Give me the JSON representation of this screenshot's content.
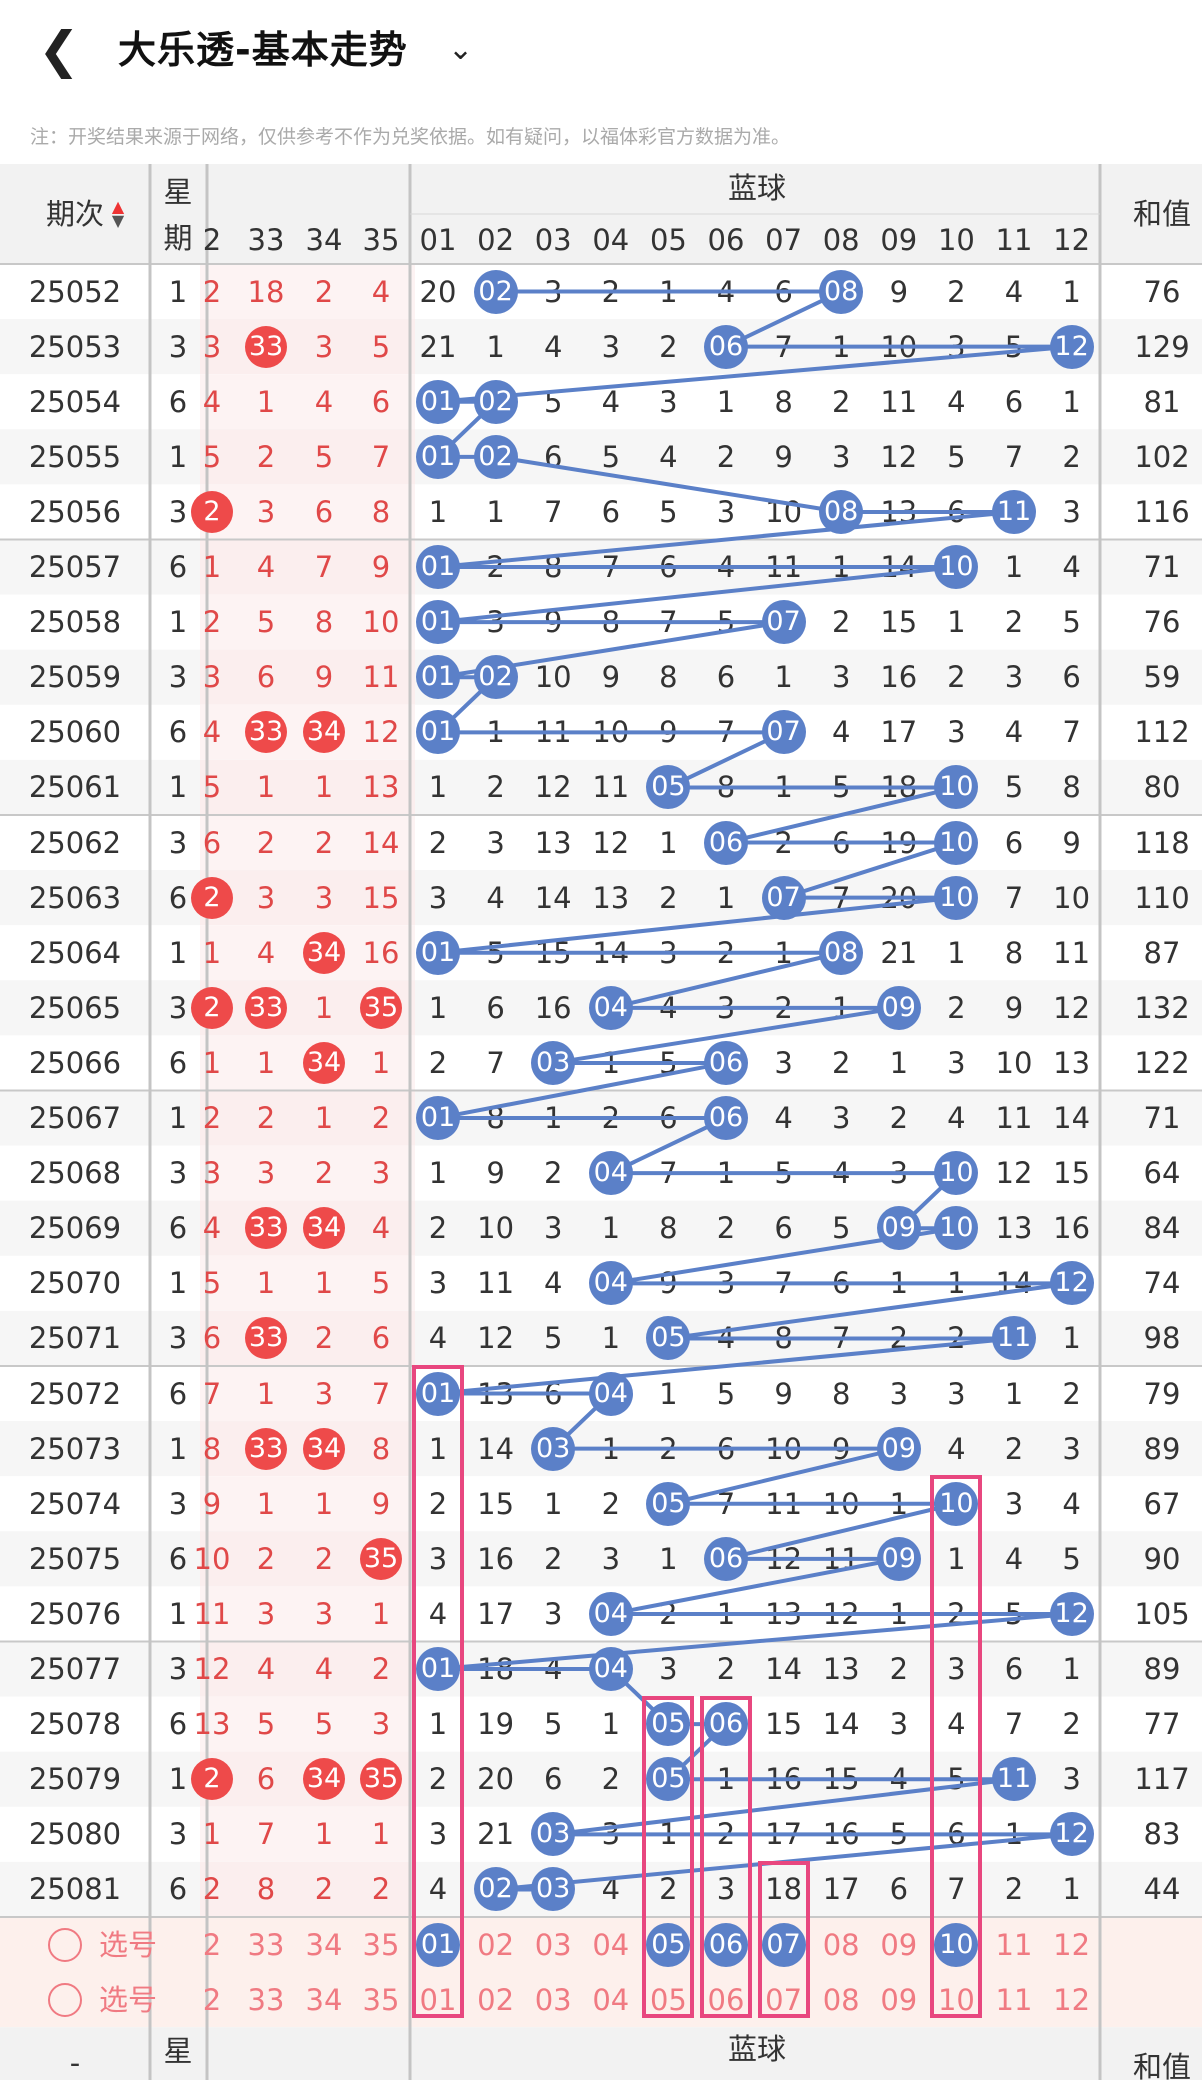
{
  "header": {
    "title": "大乐透-基本走势",
    "back_icon": "chevron-left-icon",
    "dropdown_icon": "chevron-down-icon"
  },
  "note": "注：开奖结果来源于网络，仅供参考不作为兑奖依据。如有疑问，以福体彩官方数据为准。",
  "table_header": {
    "period_label": "期次",
    "week_label": "星期",
    "blue_label": "蓝球",
    "sum_label": "和值",
    "red_cols": [
      "2",
      "33",
      "34",
      "35"
    ],
    "blue_cols": [
      "01",
      "02",
      "03",
      "04",
      "05",
      "06",
      "07",
      "08",
      "09",
      "10",
      "11",
      "12"
    ]
  },
  "colors": {
    "red_ball": "#ee4a4a",
    "blue_ball": "#5b80c8",
    "trend_line": "#5b80c8",
    "box": "#e8477f",
    "red_text": "#e04848",
    "pick_text": "#f07a82"
  },
  "rows": [
    {
      "period": "25052",
      "week": "1",
      "red": [
        "2",
        "18",
        "2",
        "4"
      ],
      "red_hit": [
        false,
        false,
        false,
        false
      ],
      "blue": [
        "20",
        "02",
        "3",
        "2",
        "1",
        "4",
        "6",
        "08",
        "9",
        "2",
        "4",
        "1"
      ],
      "blue_hit": [
        2,
        8
      ],
      "sum": "76"
    },
    {
      "period": "25053",
      "week": "3",
      "red": [
        "3",
        "33",
        "3",
        "5"
      ],
      "red_hit": [
        false,
        true,
        false,
        false
      ],
      "blue": [
        "21",
        "1",
        "4",
        "3",
        "2",
        "06",
        "7",
        "1",
        "10",
        "3",
        "5",
        "12"
      ],
      "blue_hit": [
        6,
        12
      ],
      "sum": "129"
    },
    {
      "period": "25054",
      "week": "6",
      "red": [
        "4",
        "1",
        "4",
        "6"
      ],
      "red_hit": [
        false,
        false,
        false,
        false
      ],
      "blue": [
        "01",
        "02",
        "5",
        "4",
        "3",
        "1",
        "8",
        "2",
        "11",
        "4",
        "6",
        "1"
      ],
      "blue_hit": [
        1,
        2
      ],
      "sum": "81"
    },
    {
      "period": "25055",
      "week": "1",
      "red": [
        "5",
        "2",
        "5",
        "7"
      ],
      "red_hit": [
        false,
        false,
        false,
        false
      ],
      "blue": [
        "01",
        "02",
        "6",
        "5",
        "4",
        "2",
        "9",
        "3",
        "12",
        "5",
        "7",
        "2"
      ],
      "blue_hit": [
        1,
        2
      ],
      "sum": "102"
    },
    {
      "period": "25056",
      "week": "3",
      "red": [
        "2",
        "3",
        "6",
        "8"
      ],
      "red_hit": [
        true,
        false,
        false,
        false
      ],
      "blue": [
        "1",
        "1",
        "7",
        "6",
        "5",
        "3",
        "10",
        "08",
        "13",
        "6",
        "11",
        "3"
      ],
      "blue_hit": [
        8,
        11
      ],
      "sum": "116"
    },
    {
      "period": "25057",
      "week": "6",
      "red": [
        "1",
        "4",
        "7",
        "9"
      ],
      "red_hit": [
        false,
        false,
        false,
        false
      ],
      "blue": [
        "01",
        "2",
        "8",
        "7",
        "6",
        "4",
        "11",
        "1",
        "14",
        "10",
        "1",
        "4"
      ],
      "blue_hit": [
        1,
        10
      ],
      "sum": "71"
    },
    {
      "period": "25058",
      "week": "1",
      "red": [
        "2",
        "5",
        "8",
        "10"
      ],
      "red_hit": [
        false,
        false,
        false,
        false
      ],
      "blue": [
        "01",
        "3",
        "9",
        "8",
        "7",
        "5",
        "07",
        "2",
        "15",
        "1",
        "2",
        "5"
      ],
      "blue_hit": [
        1,
        7
      ],
      "sum": "76"
    },
    {
      "period": "25059",
      "week": "3",
      "red": [
        "3",
        "6",
        "9",
        "11"
      ],
      "red_hit": [
        false,
        false,
        false,
        false
      ],
      "blue": [
        "01",
        "02",
        "10",
        "9",
        "8",
        "6",
        "1",
        "3",
        "16",
        "2",
        "3",
        "6"
      ],
      "blue_hit": [
        1,
        2
      ],
      "sum": "59"
    },
    {
      "period": "25060",
      "week": "6",
      "red": [
        "4",
        "33",
        "34",
        "12"
      ],
      "red_hit": [
        false,
        true,
        true,
        false
      ],
      "blue": [
        "01",
        "1",
        "11",
        "10",
        "9",
        "7",
        "07",
        "4",
        "17",
        "3",
        "4",
        "7"
      ],
      "blue_hit": [
        1,
        7
      ],
      "sum": "112"
    },
    {
      "period": "25061",
      "week": "1",
      "red": [
        "5",
        "1",
        "1",
        "13"
      ],
      "red_hit": [
        false,
        false,
        false,
        false
      ],
      "blue": [
        "1",
        "2",
        "12",
        "11",
        "05",
        "8",
        "1",
        "5",
        "18",
        "10",
        "5",
        "8"
      ],
      "blue_hit": [
        5,
        10
      ],
      "sum": "80"
    },
    {
      "period": "25062",
      "week": "3",
      "red": [
        "6",
        "2",
        "2",
        "14"
      ],
      "red_hit": [
        false,
        false,
        false,
        false
      ],
      "blue": [
        "2",
        "3",
        "13",
        "12",
        "1",
        "06",
        "2",
        "6",
        "19",
        "10",
        "6",
        "9"
      ],
      "blue_hit": [
        6,
        10
      ],
      "sum": "118"
    },
    {
      "period": "25063",
      "week": "6",
      "red": [
        "2",
        "3",
        "3",
        "15"
      ],
      "red_hit": [
        true,
        false,
        false,
        false
      ],
      "blue": [
        "3",
        "4",
        "14",
        "13",
        "2",
        "1",
        "07",
        "7",
        "20",
        "10",
        "7",
        "10"
      ],
      "blue_hit": [
        7,
        10
      ],
      "sum": "110"
    },
    {
      "period": "25064",
      "week": "1",
      "red": [
        "1",
        "4",
        "34",
        "16"
      ],
      "red_hit": [
        false,
        false,
        true,
        false
      ],
      "blue": [
        "01",
        "5",
        "15",
        "14",
        "3",
        "2",
        "1",
        "08",
        "21",
        "1",
        "8",
        "11"
      ],
      "blue_hit": [
        1,
        8
      ],
      "sum": "87"
    },
    {
      "period": "25065",
      "week": "3",
      "red": [
        "2",
        "33",
        "1",
        "35"
      ],
      "red_hit": [
        true,
        true,
        false,
        true
      ],
      "blue": [
        "1",
        "6",
        "16",
        "04",
        "4",
        "3",
        "2",
        "1",
        "09",
        "2",
        "9",
        "12"
      ],
      "blue_hit": [
        4,
        9
      ],
      "sum": "132"
    },
    {
      "period": "25066",
      "week": "6",
      "red": [
        "1",
        "1",
        "34",
        "1"
      ],
      "red_hit": [
        false,
        false,
        true,
        false
      ],
      "blue": [
        "2",
        "7",
        "03",
        "1",
        "5",
        "06",
        "3",
        "2",
        "1",
        "3",
        "10",
        "13"
      ],
      "blue_hit": [
        3,
        6
      ],
      "sum": "122"
    },
    {
      "period": "25067",
      "week": "1",
      "red": [
        "2",
        "2",
        "1",
        "2"
      ],
      "red_hit": [
        false,
        false,
        false,
        false
      ],
      "blue": [
        "01",
        "8",
        "1",
        "2",
        "6",
        "06",
        "4",
        "3",
        "2",
        "4",
        "11",
        "14"
      ],
      "blue_hit": [
        1,
        6
      ],
      "sum": "71"
    },
    {
      "period": "25068",
      "week": "3",
      "red": [
        "3",
        "3",
        "2",
        "3"
      ],
      "red_hit": [
        false,
        false,
        false,
        false
      ],
      "blue": [
        "1",
        "9",
        "2",
        "04",
        "7",
        "1",
        "5",
        "4",
        "3",
        "10",
        "12",
        "15"
      ],
      "blue_hit": [
        4,
        10
      ],
      "sum": "64"
    },
    {
      "period": "25069",
      "week": "6",
      "red": [
        "4",
        "33",
        "34",
        "4"
      ],
      "red_hit": [
        false,
        true,
        true,
        false
      ],
      "blue": [
        "2",
        "10",
        "3",
        "1",
        "8",
        "2",
        "6",
        "5",
        "09",
        "10",
        "13",
        "16"
      ],
      "blue_hit": [
        9,
        10
      ],
      "sum": "84"
    },
    {
      "period": "25070",
      "week": "1",
      "red": [
        "5",
        "1",
        "1",
        "5"
      ],
      "red_hit": [
        false,
        false,
        false,
        false
      ],
      "blue": [
        "3",
        "11",
        "4",
        "04",
        "9",
        "3",
        "7",
        "6",
        "1",
        "1",
        "14",
        "12"
      ],
      "blue_hit": [
        4,
        12
      ],
      "sum": "74"
    },
    {
      "period": "25071",
      "week": "3",
      "red": [
        "6",
        "33",
        "2",
        "6"
      ],
      "red_hit": [
        false,
        true,
        false,
        false
      ],
      "blue": [
        "4",
        "12",
        "5",
        "1",
        "05",
        "4",
        "8",
        "7",
        "2",
        "2",
        "11",
        "1"
      ],
      "blue_hit": [
        5,
        11
      ],
      "sum": "98"
    },
    {
      "period": "25072",
      "week": "6",
      "red": [
        "7",
        "1",
        "3",
        "7"
      ],
      "red_hit": [
        false,
        false,
        false,
        false
      ],
      "blue": [
        "01",
        "13",
        "6",
        "04",
        "1",
        "5",
        "9",
        "8",
        "3",
        "3",
        "1",
        "2"
      ],
      "blue_hit": [
        1,
        4
      ],
      "sum": "79"
    },
    {
      "period": "25073",
      "week": "1",
      "red": [
        "8",
        "33",
        "34",
        "8"
      ],
      "red_hit": [
        false,
        true,
        true,
        false
      ],
      "blue": [
        "1",
        "14",
        "03",
        "1",
        "2",
        "6",
        "10",
        "9",
        "09",
        "4",
        "2",
        "3"
      ],
      "blue_hit": [
        3,
        9
      ],
      "sum": "89"
    },
    {
      "period": "25074",
      "week": "3",
      "red": [
        "9",
        "1",
        "1",
        "9"
      ],
      "red_hit": [
        false,
        false,
        false,
        false
      ],
      "blue": [
        "2",
        "15",
        "1",
        "2",
        "05",
        "7",
        "11",
        "10",
        "1",
        "10",
        "3",
        "4"
      ],
      "blue_hit": [
        5,
        10
      ],
      "sum": "67"
    },
    {
      "period": "25075",
      "week": "6",
      "red": [
        "10",
        "2",
        "2",
        "35"
      ],
      "red_hit": [
        false,
        false,
        false,
        true
      ],
      "blue": [
        "3",
        "16",
        "2",
        "3",
        "1",
        "06",
        "12",
        "11",
        "09",
        "1",
        "4",
        "5"
      ],
      "blue_hit": [
        6,
        9
      ],
      "sum": "90"
    },
    {
      "period": "25076",
      "week": "1",
      "red": [
        "11",
        "3",
        "3",
        "1"
      ],
      "red_hit": [
        false,
        false,
        false,
        false
      ],
      "blue": [
        "4",
        "17",
        "3",
        "04",
        "2",
        "1",
        "13",
        "12",
        "1",
        "2",
        "5",
        "12"
      ],
      "blue_hit": [
        4,
        12
      ],
      "sum": "105"
    },
    {
      "period": "25077",
      "week": "3",
      "red": [
        "12",
        "4",
        "4",
        "2"
      ],
      "red_hit": [
        false,
        false,
        false,
        false
      ],
      "blue": [
        "01",
        "18",
        "4",
        "04",
        "3",
        "2",
        "14",
        "13",
        "2",
        "3",
        "6",
        "1"
      ],
      "blue_hit": [
        1,
        4
      ],
      "sum": "89"
    },
    {
      "period": "25078",
      "week": "6",
      "red": [
        "13",
        "5",
        "5",
        "3"
      ],
      "red_hit": [
        false,
        false,
        false,
        false
      ],
      "blue": [
        "1",
        "19",
        "5",
        "1",
        "05",
        "06",
        "15",
        "14",
        "3",
        "4",
        "7",
        "2"
      ],
      "blue_hit": [
        5,
        6
      ],
      "sum": "77"
    },
    {
      "period": "25079",
      "week": "1",
      "red": [
        "2",
        "6",
        "34",
        "35"
      ],
      "red_hit": [
        true,
        false,
        true,
        true
      ],
      "blue": [
        "2",
        "20",
        "6",
        "2",
        "05",
        "1",
        "16",
        "15",
        "4",
        "5",
        "11",
        "3"
      ],
      "blue_hit": [
        5,
        11
      ],
      "sum": "117"
    },
    {
      "period": "25080",
      "week": "3",
      "red": [
        "1",
        "7",
        "1",
        "1"
      ],
      "red_hit": [
        false,
        false,
        false,
        false
      ],
      "blue": [
        "3",
        "21",
        "03",
        "3",
        "1",
        "2",
        "17",
        "16",
        "5",
        "6",
        "1",
        "12"
      ],
      "blue_hit": [
        3,
        12
      ],
      "sum": "83"
    },
    {
      "period": "25081",
      "week": "6",
      "red": [
        "2",
        "8",
        "2",
        "2"
      ],
      "red_hit": [
        false,
        false,
        false,
        false
      ],
      "blue": [
        "4",
        "02",
        "03",
        "4",
        "2",
        "3",
        "18",
        "17",
        "6",
        "7",
        "2",
        "1"
      ],
      "blue_hit": [
        2,
        3
      ],
      "sum": "44"
    }
  ],
  "picks": [
    {
      "label": "选号",
      "red": [
        "2",
        "33",
        "34",
        "35"
      ],
      "blue": [
        "01",
        "02",
        "03",
        "04",
        "05",
        "06",
        "07",
        "08",
        "09",
        "10",
        "11",
        "12"
      ],
      "selected": [
        1,
        5,
        6,
        7,
        10
      ]
    },
    {
      "label": "选号",
      "red": [
        "2",
        "33",
        "34",
        "35"
      ],
      "blue": [
        "01",
        "02",
        "03",
        "04",
        "05",
        "06",
        "07",
        "08",
        "09",
        "10",
        "11",
        "12"
      ],
      "selected": []
    }
  ],
  "footer": {
    "dash": "-",
    "week_label": "星",
    "blue_label": "蓝球",
    "sum_label": "和值"
  }
}
